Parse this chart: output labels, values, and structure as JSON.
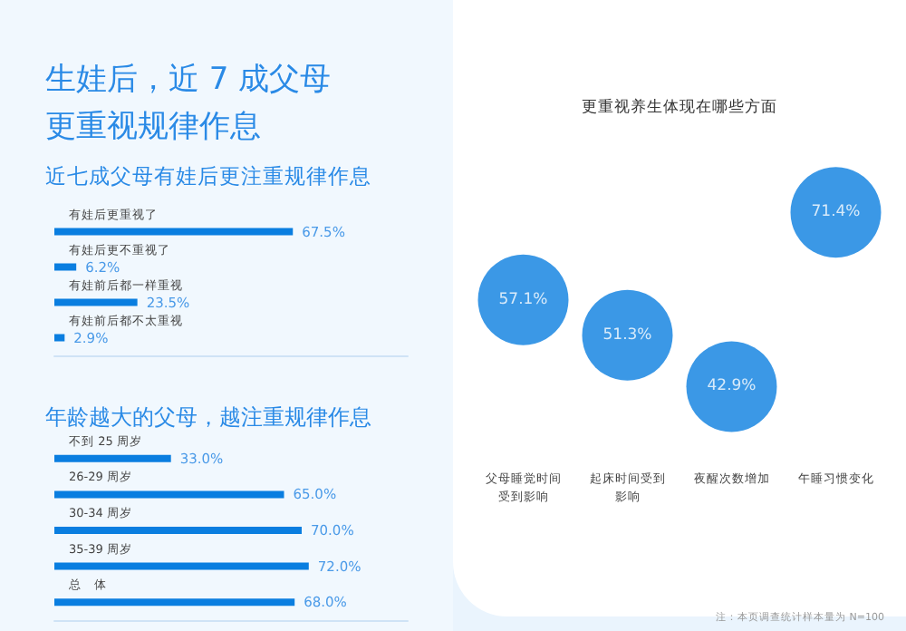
{
  "chart_data": [
    {
      "type": "bar",
      "orientation": "horizontal",
      "title": "生娃后，近 7 成父母更重视规律作息",
      "subtitle": "近七成父母有娃后更注重规律作息",
      "categories": [
        "有娃后更重视了",
        "有娃后更不重视了",
        "有娃前后都一样重视",
        "有娃前后都不太重视"
      ],
      "values": [
        67.5,
        6.2,
        23.5,
        2.9
      ],
      "value_labels": [
        "67.5%",
        "6.2%",
        "23.5%",
        "2.9%"
      ],
      "color": "#0a7ee0",
      "xlim": [
        0,
        100
      ],
      "tick_labels": "y"
    },
    {
      "type": "bar",
      "orientation": "horizontal",
      "title": "年龄越大的父母，越注重规律作息",
      "categories": [
        "不到 25 周岁",
        "26-29 周岁",
        "30-34 周岁",
        "35-39 周岁",
        "总　体"
      ],
      "values": [
        33.0,
        65.0,
        70.0,
        72.0,
        68.0
      ],
      "value_labels": [
        "33.0%",
        "65.0%",
        "70.0%",
        "72.0%",
        "68.0%"
      ],
      "color": "#0a7ee0",
      "xlim": [
        0,
        100
      ],
      "tick_labels": "y"
    },
    {
      "type": "other",
      "title": "更重视养生体现在哪些方面",
      "categories": [
        "父母睡觉时间受到影响",
        "起床时间受到影响",
        "夜醒次数增加",
        "午睡习惯变化"
      ],
      "values": [
        57.1,
        51.3,
        42.9,
        71.4
      ],
      "value_labels": [
        "57.1%",
        "51.3%",
        "42.9%",
        "71.4%"
      ],
      "color": "#0a7ee0",
      "annotations": [
        "注：本页调查统计样本量为 N=100"
      ]
    }
  ]
}
